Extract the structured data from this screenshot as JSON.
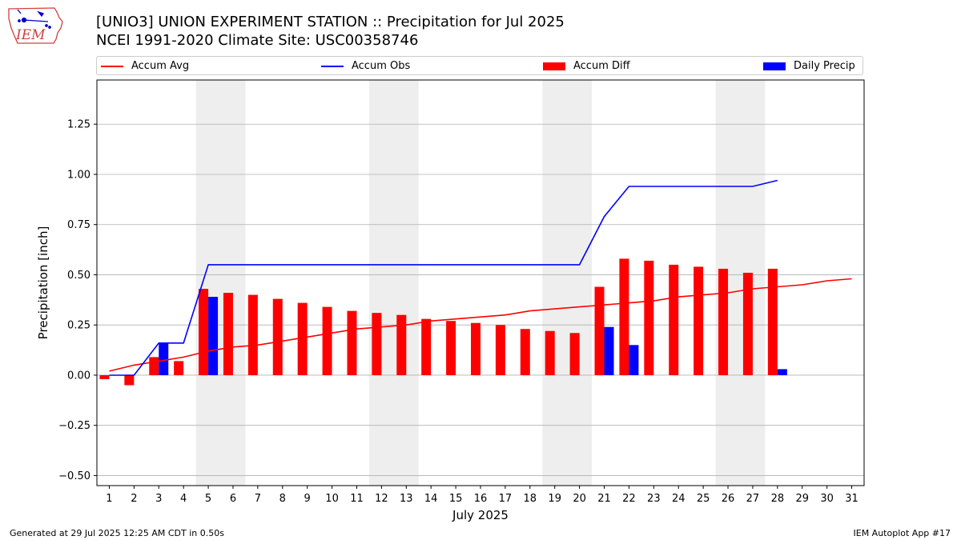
{
  "header": {
    "title_line1": "[UNIO3] UNION EXPERIMENT STATION :: Precipitation for Jul 2025",
    "title_line2": "NCEI 1991-2020 Climate Site: USC00358746"
  },
  "logo": {
    "text": "IEM",
    "icon": "iem-iowa-logo-icon"
  },
  "legend": {
    "items": [
      {
        "label": "Accum Avg",
        "kind": "line",
        "color": "#ff0000"
      },
      {
        "label": "Accum Obs",
        "kind": "line",
        "color": "#0000ff"
      },
      {
        "label": "Accum Diff",
        "kind": "patch",
        "color": "#ff0000"
      },
      {
        "label": "Daily Precip",
        "kind": "patch",
        "color": "#0000ff"
      }
    ]
  },
  "chart_data": {
    "type": "bar",
    "xlabel": "July 2025",
    "ylabel": "Precipitation [inch]",
    "x": [
      1,
      2,
      3,
      4,
      5,
      6,
      7,
      8,
      9,
      10,
      11,
      12,
      13,
      14,
      15,
      16,
      17,
      18,
      19,
      20,
      21,
      22,
      23,
      24,
      25,
      26,
      27,
      28,
      29,
      30,
      31
    ],
    "xlim": [
      0.5,
      31.5
    ],
    "ylim": [
      -0.55,
      1.47
    ],
    "yticks": [
      -0.5,
      -0.25,
      0.0,
      0.25,
      0.5,
      0.75,
      1.0,
      1.25
    ],
    "ytick_labels": [
      "−0.50",
      "−0.25",
      "0.00",
      "0.25",
      "0.50",
      "0.75",
      "1.00",
      "1.25"
    ],
    "grid": "horizontal",
    "legend_position": "top",
    "weekend_shading": [
      [
        4.5,
        6.5
      ],
      [
        11.5,
        13.5
      ],
      [
        18.5,
        20.5
      ],
      [
        25.5,
        27.5
      ]
    ],
    "series": [
      {
        "name": "Accum Avg",
        "kind": "line",
        "color": "#ff0000",
        "x": [
          1,
          2,
          3,
          4,
          5,
          6,
          7,
          8,
          9,
          10,
          11,
          12,
          13,
          14,
          15,
          16,
          17,
          18,
          19,
          20,
          21,
          22,
          23,
          24,
          25,
          26,
          27,
          28,
          29,
          30,
          31
        ],
        "values": [
          0.02,
          0.05,
          0.07,
          0.09,
          0.12,
          0.14,
          0.15,
          0.17,
          0.19,
          0.21,
          0.23,
          0.24,
          0.25,
          0.27,
          0.28,
          0.29,
          0.3,
          0.32,
          0.33,
          0.34,
          0.35,
          0.36,
          0.37,
          0.39,
          0.4,
          0.41,
          0.43,
          0.44,
          0.45,
          0.47,
          0.48
        ]
      },
      {
        "name": "Accum Obs",
        "kind": "line",
        "color": "#0000ff",
        "x": [
          1,
          2,
          3,
          4,
          5,
          6,
          7,
          8,
          9,
          10,
          11,
          12,
          13,
          14,
          15,
          16,
          17,
          18,
          19,
          20,
          21,
          22,
          23,
          24,
          25,
          26,
          27,
          28
        ],
        "values": [
          0.0,
          0.0,
          0.16,
          0.16,
          0.55,
          0.55,
          0.55,
          0.55,
          0.55,
          0.55,
          0.55,
          0.55,
          0.55,
          0.55,
          0.55,
          0.55,
          0.55,
          0.55,
          0.55,
          0.55,
          0.79,
          0.94,
          0.94,
          0.94,
          0.94,
          0.94,
          0.94,
          0.97
        ]
      },
      {
        "name": "Accum Diff",
        "kind": "bar",
        "color": "#ff0000",
        "x": [
          1,
          2,
          3,
          4,
          5,
          6,
          7,
          8,
          9,
          10,
          11,
          12,
          13,
          14,
          15,
          16,
          17,
          18,
          19,
          20,
          21,
          22,
          23,
          24,
          25,
          26,
          27,
          28
        ],
        "values": [
          -0.02,
          -0.05,
          0.09,
          0.07,
          0.43,
          0.41,
          0.4,
          0.38,
          0.36,
          0.34,
          0.32,
          0.31,
          0.3,
          0.28,
          0.27,
          0.26,
          0.25,
          0.23,
          0.22,
          0.21,
          0.44,
          0.58,
          0.57,
          0.55,
          0.54,
          0.53,
          0.51,
          0.53
        ]
      },
      {
        "name": "Daily Precip",
        "kind": "bar",
        "color": "#0000ff",
        "x": [
          3,
          5,
          21,
          22,
          28
        ],
        "values": [
          0.16,
          0.39,
          0.24,
          0.15,
          0.03
        ]
      }
    ]
  },
  "footer": {
    "left": "Generated at 29 Jul 2025 12:25 AM CDT in 0.50s",
    "right": "IEM Autoplot App #17"
  }
}
